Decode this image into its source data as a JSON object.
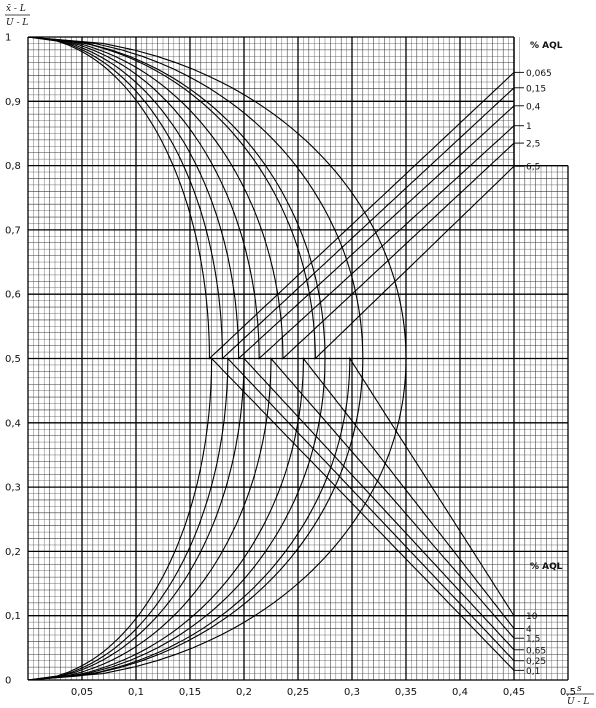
{
  "chart_data": {
    "type": "line",
    "title": "",
    "ylabel_num": "x̄ - L",
    "ylabel_den": "U - L",
    "xlabel_num": "s",
    "xlabel_den": "U - L",
    "xlim": [
      0,
      0.5
    ],
    "ylim": [
      0,
      1
    ],
    "x_ticks": [
      {
        "v": 0.05,
        "label": "0,05"
      },
      {
        "v": 0.1,
        "label": "0,1"
      },
      {
        "v": 0.15,
        "label": "0,15"
      },
      {
        "v": 0.2,
        "label": "0,2"
      },
      {
        "v": 0.25,
        "label": "0,25"
      },
      {
        "v": 0.3,
        "label": "0,3"
      },
      {
        "v": 0.35,
        "label": "0,35"
      },
      {
        "v": 0.4,
        "label": "0,4"
      },
      {
        "v": 0.45,
        "label": "0,45"
      },
      {
        "v": 0.5,
        "label": "0,5"
      }
    ],
    "y_ticks": [
      {
        "v": 0,
        "label": "0"
      },
      {
        "v": 0.1,
        "label": "0,1"
      },
      {
        "v": 0.2,
        "label": "0,2"
      },
      {
        "v": 0.3,
        "label": "0,3"
      },
      {
        "v": 0.4,
        "label": "0,4"
      },
      {
        "v": 0.5,
        "label": "0,5"
      },
      {
        "v": 0.6,
        "label": "0,6"
      },
      {
        "v": 0.7,
        "label": "0,7"
      },
      {
        "v": 0.8,
        "label": "0,8"
      },
      {
        "v": 0.9,
        "label": "0,9"
      },
      {
        "v": 1,
        "label": "1"
      }
    ],
    "grid": true,
    "legend_top_title": "% AQL",
    "legend_bottom_title": "% AQL",
    "series": [
      {
        "name": "0,065",
        "family": "top",
        "nose_x": 0.168,
        "end_y": 0.945
      },
      {
        "name": "0,15",
        "family": "top",
        "nose_x": 0.18,
        "end_y": 0.921
      },
      {
        "name": "0,4",
        "family": "top",
        "nose_x": 0.195,
        "end_y": 0.893
      },
      {
        "name": "1",
        "family": "top",
        "nose_x": 0.214,
        "end_y": 0.862
      },
      {
        "name": "2,5",
        "family": "top",
        "nose_x": 0.236,
        "end_y": 0.835
      },
      {
        "name": "6,5",
        "family": "top",
        "nose_x": 0.266,
        "end_y": 0.799
      },
      {
        "name": "10",
        "family": "bottom",
        "nose_x": 0.298,
        "end_y": 0.1
      },
      {
        "name": "4",
        "family": "bottom",
        "nose_x": 0.255,
        "end_y": 0.08
      },
      {
        "name": "1,5",
        "family": "bottom",
        "nose_x": 0.225,
        "end_y": 0.065
      },
      {
        "name": "0,65",
        "family": "bottom",
        "nose_x": 0.2,
        "end_y": 0.047
      },
      {
        "name": "0,25",
        "family": "bottom",
        "nose_x": 0.185,
        "end_y": 0.03
      },
      {
        "name": "0,1",
        "family": "bottom",
        "nose_x": 0.17,
        "end_y": 0.015
      }
    ],
    "envelope_series": [
      {
        "nose_x": 0.275
      },
      {
        "nose_x": 0.31
      },
      {
        "nose_x": 0.35
      }
    ]
  }
}
